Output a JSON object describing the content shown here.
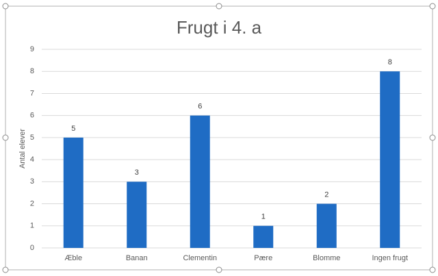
{
  "chart_data": {
    "type": "bar",
    "title": "Frugt i 4. a",
    "y_label": "Antal elever",
    "categories": [
      "Æble",
      "Banan",
      "Clementin",
      "Pære",
      "Blomme",
      "Ingen frugt"
    ],
    "values": [
      5,
      3,
      6,
      1,
      2,
      8
    ],
    "color": "#1f6cc4",
    "ylim": [
      0,
      9
    ],
    "yticks": [
      0,
      1,
      2,
      3,
      4,
      5,
      6,
      7,
      8,
      9
    ],
    "grid": true
  }
}
